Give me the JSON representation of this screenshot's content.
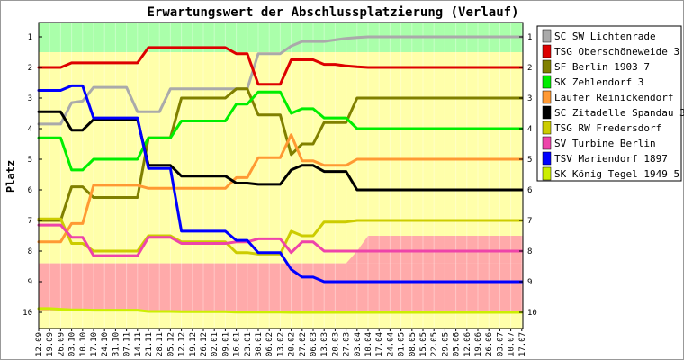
{
  "chart_data": {
    "type": "line",
    "title": "Erwartungswert der Abschlussplatzierung (Verlauf)",
    "ylabel": "Platz",
    "xlabel": "",
    "ylim": [
      10,
      1
    ],
    "yticks": [
      1,
      2,
      3,
      4,
      5,
      6,
      7,
      8,
      9,
      10
    ],
    "legend_position": "right",
    "bands": [
      {
        "name": "promotion",
        "color": "#aaffaa"
      },
      {
        "name": "middle",
        "color": "#ffffaa"
      },
      {
        "name": "relegation",
        "color": "#ffaaaa"
      }
    ],
    "categories": [
      "12.09",
      "19.09",
      "26.09",
      "03.10",
      "10.10",
      "17.10",
      "24.10",
      "31.10",
      "07.11",
      "14.11",
      "21.11",
      "28.11",
      "05.12",
      "12.12",
      "19.12",
      "26.12",
      "02.01",
      "09.01",
      "16.01",
      "23.01",
      "30.01",
      "06.02",
      "13.02",
      "20.02",
      "27.02",
      "06.03",
      "13.03",
      "20.03",
      "27.03",
      "03.04",
      "10.04",
      "17.04",
      "24.04",
      "01.05",
      "08.05",
      "15.05",
      "22.05",
      "29.05",
      "05.06",
      "12.06",
      "19.06",
      "26.06",
      "03.07",
      "10.07",
      "17.07"
    ],
    "series": [
      {
        "name": "SC SW Lichtenrade",
        "color": "#aaaaaa",
        "values": [
          3.85,
          3.85,
          3.85,
          3.15,
          3.1,
          2.65,
          2.65,
          2.65,
          2.65,
          3.45,
          3.45,
          3.45,
          2.7,
          2.7,
          2.7,
          2.7,
          2.7,
          2.7,
          2.7,
          2.7,
          1.55,
          1.55,
          1.55,
          1.3,
          1.15,
          1.15,
          1.15,
          1.1,
          1.05,
          1.02,
          1.0,
          1.0,
          1.0,
          1.0,
          1.0,
          1.0,
          1.0,
          1.0,
          1.0,
          1.0,
          1.0,
          1.0,
          1.0,
          1.0,
          1.0
        ]
      },
      {
        "name": "TSG Oberschöneweide 3",
        "color": "#dd0000",
        "values": [
          2.0,
          2.0,
          2.0,
          1.85,
          1.85,
          1.85,
          1.85,
          1.85,
          1.85,
          1.85,
          1.35,
          1.35,
          1.35,
          1.35,
          1.35,
          1.35,
          1.35,
          1.35,
          1.55,
          1.55,
          2.55,
          2.55,
          2.55,
          1.75,
          1.75,
          1.75,
          1.9,
          1.9,
          1.95,
          1.98,
          2.0,
          2.0,
          2.0,
          2.0,
          2.0,
          2.0,
          2.0,
          2.0,
          2.0,
          2.0,
          2.0,
          2.0,
          2.0,
          2.0,
          2.0
        ]
      },
      {
        "name": "SF Berlin 1903 7",
        "color": "#808000",
        "values": [
          7.0,
          7.0,
          7.0,
          5.9,
          5.9,
          6.25,
          6.25,
          6.25,
          6.25,
          6.25,
          4.3,
          4.3,
          4.3,
          3.0,
          3.0,
          3.0,
          3.0,
          3.0,
          2.7,
          2.7,
          3.55,
          3.55,
          3.55,
          4.85,
          4.5,
          4.5,
          3.8,
          3.8,
          3.8,
          3.0,
          3.0,
          3.0,
          3.0,
          3.0,
          3.0,
          3.0,
          3.0,
          3.0,
          3.0,
          3.0,
          3.0,
          3.0,
          3.0,
          3.0,
          3.0
        ]
      },
      {
        "name": "SK Zehlendorf 3",
        "color": "#00ee00",
        "values": [
          4.3,
          4.3,
          4.3,
          5.35,
          5.35,
          5.0,
          5.0,
          5.0,
          5.0,
          5.0,
          4.3,
          4.3,
          4.3,
          3.75,
          3.75,
          3.75,
          3.75,
          3.75,
          3.2,
          3.2,
          2.8,
          2.8,
          2.8,
          3.5,
          3.35,
          3.35,
          3.65,
          3.65,
          3.65,
          4.0,
          4.0,
          4.0,
          4.0,
          4.0,
          4.0,
          4.0,
          4.0,
          4.0,
          4.0,
          4.0,
          4.0,
          4.0,
          4.0,
          4.0,
          4.0
        ]
      },
      {
        "name": "Läufer Reinickendorf",
        "color": "#ff9933",
        "values": [
          7.7,
          7.7,
          7.7,
          7.1,
          7.1,
          5.85,
          5.85,
          5.85,
          5.85,
          5.85,
          5.95,
          5.95,
          5.95,
          5.95,
          5.95,
          5.95,
          5.95,
          5.95,
          5.6,
          5.6,
          4.95,
          4.95,
          4.95,
          4.2,
          5.05,
          5.05,
          5.2,
          5.2,
          5.2,
          5.0,
          5.0,
          5.0,
          5.0,
          5.0,
          5.0,
          5.0,
          5.0,
          5.0,
          5.0,
          5.0,
          5.0,
          5.0,
          5.0,
          5.0,
          5.0
        ]
      },
      {
        "name": "SC Zitadelle Spandau 3",
        "color": "#000000",
        "values": [
          3.45,
          3.45,
          3.45,
          4.05,
          4.05,
          3.7,
          3.7,
          3.7,
          3.7,
          3.7,
          5.2,
          5.2,
          5.2,
          5.55,
          5.55,
          5.55,
          5.55,
          5.55,
          5.78,
          5.78,
          5.82,
          5.82,
          5.82,
          5.35,
          5.2,
          5.2,
          5.4,
          5.4,
          5.4,
          6.0,
          6.0,
          6.0,
          6.0,
          6.0,
          6.0,
          6.0,
          6.0,
          6.0,
          6.0,
          6.0,
          6.0,
          6.0,
          6.0,
          6.0,
          6.0
        ]
      },
      {
        "name": "TSG RW Fredersdorf",
        "color": "#cccc00",
        "values": [
          6.95,
          6.95,
          6.95,
          7.75,
          7.75,
          8.0,
          8.0,
          8.0,
          8.0,
          8.0,
          7.5,
          7.5,
          7.5,
          7.7,
          7.7,
          7.7,
          7.7,
          7.7,
          8.05,
          8.05,
          8.1,
          8.1,
          8.1,
          7.35,
          7.5,
          7.5,
          7.05,
          7.05,
          7.05,
          7.0,
          7.0,
          7.0,
          7.0,
          7.0,
          7.0,
          7.0,
          7.0,
          7.0,
          7.0,
          7.0,
          7.0,
          7.0,
          7.0,
          7.0,
          7.0
        ]
      },
      {
        "name": "SV Turbine Berlin",
        "color": "#ee44aa",
        "values": [
          7.15,
          7.15,
          7.15,
          7.55,
          7.55,
          8.15,
          8.15,
          8.15,
          8.15,
          8.15,
          7.55,
          7.55,
          7.55,
          7.75,
          7.75,
          7.75,
          7.75,
          7.75,
          7.7,
          7.7,
          7.6,
          7.6,
          7.6,
          8.05,
          7.7,
          7.7,
          8.0,
          8.0,
          8.0,
          8.0,
          8.0,
          8.0,
          8.0,
          8.0,
          8.0,
          8.0,
          8.0,
          8.0,
          8.0,
          8.0,
          8.0,
          8.0,
          8.0,
          8.0,
          8.0
        ]
      },
      {
        "name": "TSV Mariendorf 1897",
        "color": "#0000ff",
        "values": [
          2.75,
          2.75,
          2.75,
          2.6,
          2.6,
          3.65,
          3.65,
          3.65,
          3.65,
          3.65,
          5.3,
          5.3,
          5.3,
          7.35,
          7.35,
          7.35,
          7.35,
          7.35,
          7.65,
          7.65,
          8.05,
          8.05,
          8.05,
          8.6,
          8.85,
          8.85,
          9.0,
          9.0,
          9.0,
          9.0,
          9.0,
          9.0,
          9.0,
          9.0,
          9.0,
          9.0,
          9.0,
          9.0,
          9.0,
          9.0,
          9.0,
          9.0,
          9.0,
          9.0,
          9.0
        ]
      },
      {
        "name": "SK König Tegel 1949 5",
        "color": "#ccee00",
        "values": [
          9.88,
          9.88,
          9.9,
          9.92,
          9.92,
          9.93,
          9.93,
          9.93,
          9.93,
          9.93,
          9.97,
          9.97,
          9.97,
          9.98,
          9.98,
          9.98,
          9.98,
          9.98,
          9.99,
          9.99,
          9.99,
          9.99,
          9.99,
          10.0,
          10.0,
          10.0,
          10.0,
          10.0,
          10.0,
          10.0,
          10.0,
          10.0,
          10.0,
          10.0,
          10.0,
          10.0,
          10.0,
          10.0,
          10.0,
          10.0,
          10.0,
          10.0,
          10.0,
          10.0,
          10.0
        ]
      }
    ]
  }
}
